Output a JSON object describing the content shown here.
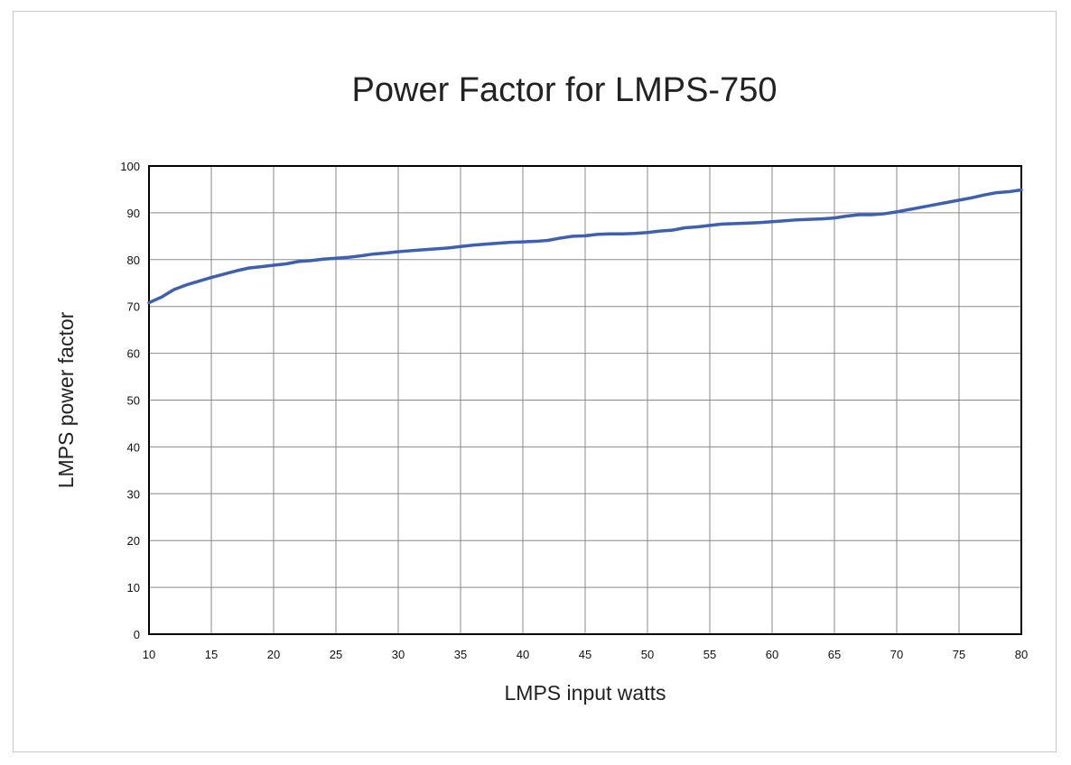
{
  "chart_data": {
    "type": "line",
    "title": "Power Factor for LMPS-750",
    "xlabel": "LMPS input watts",
    "ylabel": "LMPS power factor",
    "xlim": [
      10,
      80
    ],
    "ylim": [
      0,
      100
    ],
    "x_ticks": [
      10,
      15,
      20,
      25,
      30,
      35,
      40,
      45,
      50,
      55,
      60,
      65,
      70,
      75,
      80
    ],
    "y_ticks": [
      0,
      10,
      20,
      30,
      40,
      50,
      60,
      70,
      80,
      90,
      100
    ],
    "x_grid_step": 5,
    "y_grid_step": 10,
    "grid": true,
    "legend": "none",
    "series": [
      {
        "color": "#3f5fb0",
        "x": [
          10,
          11,
          12,
          13,
          14,
          15,
          16,
          17,
          18,
          19,
          20,
          21,
          22,
          23,
          24,
          25,
          26,
          27,
          28,
          29,
          30,
          31,
          32,
          33,
          34,
          35,
          36,
          37,
          38,
          39,
          40,
          41,
          42,
          43,
          44,
          45,
          46,
          47,
          48,
          49,
          50,
          51,
          52,
          53,
          54,
          55,
          56,
          57,
          58,
          59,
          60,
          61,
          62,
          63,
          64,
          65,
          66,
          67,
          68,
          69,
          70,
          71,
          72,
          73,
          74,
          75,
          76,
          77,
          78,
          79,
          80
        ],
        "values": [
          70.8,
          72.0,
          73.6,
          74.6,
          75.4,
          76.2,
          76.9,
          77.6,
          78.2,
          78.5,
          78.8,
          79.1,
          79.6,
          79.8,
          80.1,
          80.3,
          80.5,
          80.8,
          81.2,
          81.4,
          81.7,
          81.9,
          82.1,
          82.3,
          82.5,
          82.8,
          83.1,
          83.3,
          83.5,
          83.7,
          83.8,
          83.9,
          84.1,
          84.6,
          85.0,
          85.1,
          85.4,
          85.5,
          85.5,
          85.6,
          85.8,
          86.1,
          86.3,
          86.8,
          87.0,
          87.3,
          87.6,
          87.7,
          87.8,
          87.9,
          88.1,
          88.3,
          88.5,
          88.6,
          88.7,
          88.9,
          89.3,
          89.6,
          89.6,
          89.8,
          90.2,
          90.7,
          91.2,
          91.7,
          92.2,
          92.7,
          93.2,
          93.8,
          94.3,
          94.5,
          94.9
        ]
      }
    ]
  }
}
